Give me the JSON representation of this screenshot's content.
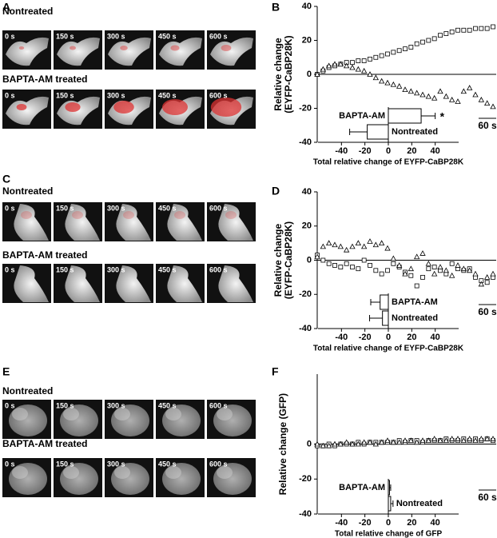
{
  "image_panels": [
    {
      "letter": "A",
      "rows": [
        {
          "label": "Nontreated",
          "times": [
            "0 s",
            "150 s",
            "300 s",
            "450 s",
            "600 s"
          ]
        },
        {
          "label": "BAPTA-AM  treated",
          "times": [
            "0 s",
            "150 s",
            "300 s",
            "450 s",
            "600 s"
          ]
        }
      ]
    },
    {
      "letter": "C",
      "rows": [
        {
          "label": "Nontreated",
          "times": [
            "0 s",
            "150 s",
            "300 s",
            "450 s",
            "600 s"
          ]
        },
        {
          "label": "BAPTA-AM  treated",
          "times": [
            "0 s",
            "150 s",
            "300 s",
            "450 s",
            "600 s"
          ]
        }
      ]
    },
    {
      "letter": "E",
      "rows": [
        {
          "label": "Nontreated",
          "times": [
            "0 s",
            "150 s",
            "300 s",
            "450 s",
            "600 s"
          ]
        },
        {
          "label": "BAPTA-AM  treated",
          "times": [
            "0 s",
            "150 s",
            "300 s",
            "450 s",
            "600 s"
          ]
        }
      ]
    }
  ],
  "chart_data": [
    {
      "type": "scatter",
      "letter": "B",
      "ylabel": [
        "Relative change",
        "(EYFP-CaBP28K)"
      ],
      "x": [
        0,
        20,
        40,
        60,
        80,
        100,
        120,
        140,
        160,
        180,
        200,
        220,
        240,
        260,
        280,
        300,
        320,
        340,
        360,
        380,
        400,
        420,
        440,
        460,
        480,
        500,
        520,
        540,
        560,
        580,
        600
      ],
      "xlim": [
        0,
        600
      ],
      "ylim": [
        -40,
        40
      ],
      "yticks": [
        40,
        20,
        0,
        -20,
        -40
      ],
      "series": [
        {
          "marker": "square",
          "color": "#000000",
          "values": [
            0,
            2,
            4,
            5,
            6,
            7,
            7,
            8,
            8,
            9,
            10,
            11,
            12,
            13,
            14,
            15,
            16,
            18,
            19,
            20,
            21,
            23,
            24,
            25,
            26,
            26,
            26,
            27,
            27,
            27,
            28
          ]
        },
        {
          "marker": "triangle",
          "color": "#000000",
          "values": [
            0,
            3,
            5,
            6,
            6,
            5,
            4,
            3,
            2,
            0,
            -2,
            -4,
            -5,
            -6,
            -7,
            -9,
            -10,
            -11,
            -12,
            -13,
            -14,
            -10,
            -13,
            -15,
            -16,
            -10,
            -8,
            -12,
            -15,
            -17,
            -19
          ]
        }
      ],
      "scale_bar": {
        "label": "60 s",
        "seconds": 60
      },
      "inset": {
        "type": "bar",
        "categories": [
          "BAPTA-AM",
          "Nontreated"
        ],
        "values": [
          28,
          -18
        ],
        "errors": [
          12,
          15
        ],
        "annotation": "*",
        "xlim": [
          -60,
          60
        ],
        "xticks": [
          -40,
          -20,
          0,
          20,
          40
        ],
        "xlabel": "Total relative change of EYFP-CaBP28K"
      }
    },
    {
      "type": "scatter",
      "letter": "D",
      "ylabel": [
        "Relative change",
        "(EYFP-CaBP28K)"
      ],
      "x": [
        0,
        20,
        40,
        60,
        80,
        100,
        120,
        140,
        160,
        180,
        200,
        220,
        240,
        260,
        280,
        300,
        320,
        340,
        360,
        380,
        400,
        420,
        440,
        460,
        480,
        500,
        520,
        540,
        560,
        580,
        600
      ],
      "xlim": [
        0,
        600
      ],
      "ylim": [
        -40,
        40
      ],
      "yticks": [
        40,
        20,
        0,
        -20,
        -40
      ],
      "series": [
        {
          "marker": "square",
          "color": "#000000",
          "values": [
            3,
            0,
            -2,
            -3,
            -4,
            -2,
            -4,
            -5,
            0,
            -3,
            -6,
            -8,
            -6,
            -2,
            -4,
            -7,
            -9,
            -15,
            -10,
            -5,
            -4,
            -6,
            -8,
            -2,
            -5,
            -6,
            -5,
            -10,
            -12,
            -13,
            -10
          ]
        },
        {
          "marker": "triangle",
          "color": "#000000",
          "values": [
            2,
            8,
            10,
            9,
            8,
            6,
            8,
            10,
            8,
            11,
            9,
            10,
            7,
            1,
            -3,
            -8,
            -5,
            2,
            4,
            -2,
            -8,
            -4,
            -6,
            -9,
            -3,
            -5,
            -6,
            -8,
            -14,
            -10,
            -8
          ]
        }
      ],
      "scale_bar": {
        "label": "60 s",
        "seconds": 60
      },
      "inset": {
        "type": "bar",
        "categories": [
          "BAPTA-AM",
          "Nontreated"
        ],
        "values": [
          -7,
          -5
        ],
        "errors": [
          8,
          11
        ],
        "xlim": [
          -60,
          60
        ],
        "xticks": [
          -40,
          -20,
          0,
          20,
          40
        ],
        "xlabel": "Total relative change of EYFP-CaBP28K"
      }
    },
    {
      "type": "scatter",
      "letter": "F",
      "ylabel": [
        "Relative change (GFP)"
      ],
      "x": [
        0,
        20,
        40,
        60,
        80,
        100,
        120,
        140,
        160,
        180,
        200,
        220,
        240,
        260,
        280,
        300,
        320,
        340,
        360,
        380,
        400,
        420,
        440,
        460,
        480,
        500,
        520,
        540,
        560,
        580,
        600
      ],
      "xlim": [
        0,
        600
      ],
      "ylim": [
        -40,
        40
      ],
      "yticks": [
        0,
        -20,
        -40
      ],
      "series": [
        {
          "marker": "square",
          "color": "#000000",
          "values": [
            -1,
            -1,
            0,
            -1,
            0,
            0,
            0,
            1,
            0,
            1,
            1,
            1,
            1,
            1,
            2,
            1,
            2,
            2,
            1,
            2,
            2,
            2,
            3,
            2,
            2,
            3,
            2,
            3,
            2,
            3,
            2
          ]
        },
        {
          "marker": "triangle",
          "color": "#000000",
          "values": [
            0,
            -1,
            -1,
            0,
            0,
            1,
            0,
            0,
            1,
            1,
            0,
            1,
            2,
            1,
            1,
            2,
            2,
            1,
            2,
            2,
            3,
            2,
            2,
            3,
            3,
            2,
            3,
            2,
            3,
            3,
            3
          ]
        }
      ],
      "scale_bar": {
        "label": "60 s",
        "seconds": 60
      },
      "inset": {
        "type": "bar",
        "categories": [
          "BAPTA-AM",
          "Nontreated"
        ],
        "values": [
          1,
          2
        ],
        "errors": [
          1,
          2
        ],
        "xlim": [
          -60,
          60
        ],
        "xticks": [
          -40,
          -20,
          0,
          20,
          40
        ],
        "xlabel": "Total relative change of GFP"
      }
    }
  ]
}
